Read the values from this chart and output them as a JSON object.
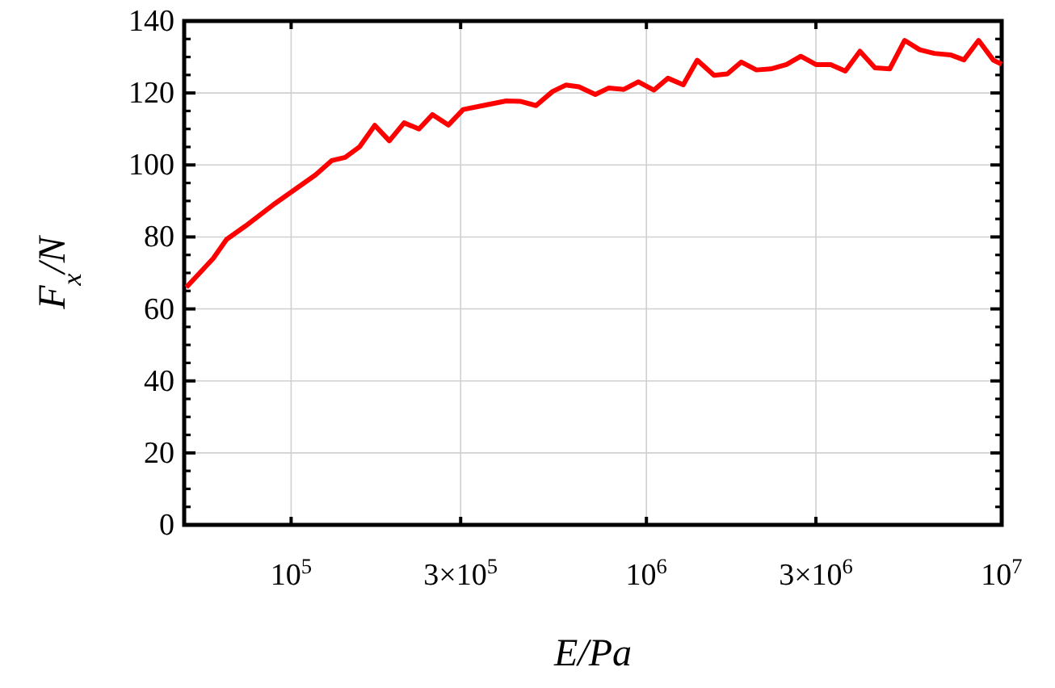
{
  "chart_data": {
    "type": "line",
    "xlabel": "E/Pa",
    "ylabel": "F$_{x}$/N",
    "log": "x",
    "grid": true,
    "line_style": "solid",
    "marker": "none",
    "xlim": [
      50000,
      10000000
    ],
    "ylim": [
      0,
      140
    ],
    "xticks": [
      {
        "value": 100000,
        "label": "10$^{5}$"
      },
      {
        "value": 300000,
        "label": "3×10$^{5}$"
      },
      {
        "value": 1000000,
        "label": "10$^{6}$"
      },
      {
        "value": 3000000,
        "label": "3×10$^{6}$"
      },
      {
        "value": 10000000,
        "label": "10$^{7}$"
      }
    ],
    "yticks": [
      0,
      20,
      40,
      60,
      80,
      100,
      120,
      140
    ],
    "series": [
      {
        "color": "#ff0000",
        "x": [
          50700,
          60300,
          65800,
          74300,
          90100,
          117000,
          130000,
          142000,
          156000,
          172000,
          189000,
          208000,
          229000,
          250000,
          277000,
          305000,
          351000,
          403000,
          441000,
          489000,
          544000,
          593000,
          646000,
          718000,
          784000,
          864000,
          949000,
          1050000,
          1150000,
          1270000,
          1390000,
          1550000,
          1690000,
          1850000,
          2040000,
          2240000,
          2480000,
          2720000,
          3000000,
          3300000,
          3630000,
          3990000,
          4400000,
          4840000,
          5330000,
          5880000,
          6460000,
          7170000,
          7830000,
          8610000,
          9480000,
          10000000
        ],
        "values": [
          66,
          74,
          79.3,
          83,
          89.3,
          97.2,
          101.2,
          102.1,
          105.1,
          111,
          106.7,
          111.7,
          110,
          114,
          111.1,
          115.4,
          116.6,
          117.8,
          117.7,
          116.5,
          120.4,
          122.2,
          121.7,
          119.6,
          121.4,
          121,
          123.1,
          120.8,
          124.1,
          122.3,
          129.1,
          124.9,
          125.3,
          128.6,
          126.4,
          126.7,
          127.9,
          130.2,
          127.9,
          127.9,
          126.1,
          131.6,
          127,
          126.7,
          134.6,
          132,
          131,
          130.6,
          129.2,
          134.6,
          129.1,
          128
        ]
      }
    ]
  }
}
